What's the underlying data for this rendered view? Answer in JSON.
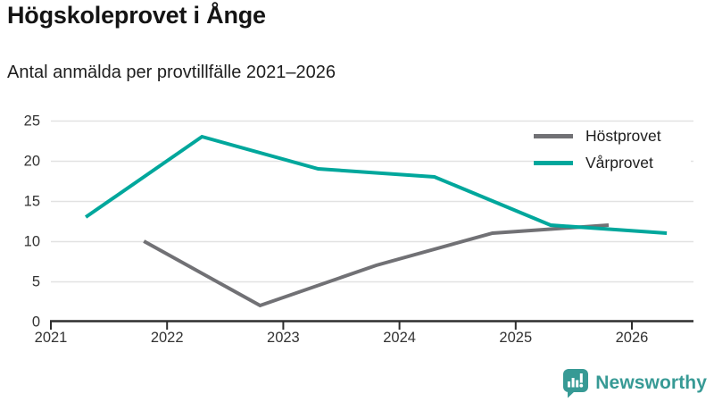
{
  "header": {
    "title": "Högskoleprovet i Ånge",
    "subtitle": "Antal anmälda per provtillfälle 2021–2026"
  },
  "colors": {
    "background": "#ffffff",
    "title_text": "#141414",
    "grid_line": "#e2e2e2",
    "axis_line": "#2e2e2e",
    "tick_label": "#333333",
    "legend_label": "#1e1e1e",
    "brand_teal": "#379a95",
    "host_gray": "#717175",
    "var_teal": "#00a79c"
  },
  "chart_data": {
    "type": "line",
    "title": "Högskoleprovet i Ånge",
    "subtitle": "Antal anmälda per provtillfälle 2021–2026",
    "xlabel": "",
    "ylabel": "",
    "xlim": [
      2021,
      2026.53
    ],
    "ylim": [
      0,
      25
    ],
    "x_ticks": [
      2021,
      2022,
      2023,
      2024,
      2025,
      2026
    ],
    "y_ticks": [
      0,
      5,
      10,
      15,
      20,
      25
    ],
    "grid": "horizontal",
    "legend_position": "top-right",
    "series": [
      {
        "name": "Höstprovet",
        "color": "#717175",
        "x": [
          2021.8,
          2022.8,
          2023.8,
          2024.8,
          2025.8
        ],
        "y": [
          10,
          2,
          7,
          11,
          12
        ]
      },
      {
        "name": "Vårprovet",
        "color": "#00a79c",
        "x": [
          2021.3,
          2022.3,
          2023.3,
          2024.3,
          2025.3,
          2026.3
        ],
        "y": [
          13,
          23,
          19,
          18,
          12,
          11
        ]
      }
    ]
  },
  "footer": {
    "brand": "Newsworthy"
  }
}
